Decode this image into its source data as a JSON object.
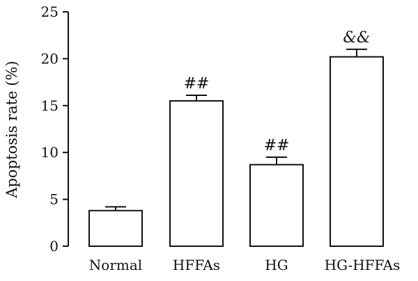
{
  "chart_data": {
    "type": "bar",
    "title": "",
    "xlabel": "",
    "ylabel": "Apoptosis rate (%)",
    "ylim": [
      0,
      25
    ],
    "yticks": [
      0,
      5,
      10,
      15,
      20,
      25
    ],
    "categories": [
      "Normal",
      "HFFAs",
      "HG",
      "HG-HFFAs"
    ],
    "values": [
      3.8,
      15.5,
      8.7,
      20.2
    ],
    "errors": [
      0.4,
      0.6,
      0.8,
      0.8
    ],
    "annotations": [
      "",
      "##",
      "##",
      "&&"
    ],
    "grid": false,
    "legend": "none"
  }
}
